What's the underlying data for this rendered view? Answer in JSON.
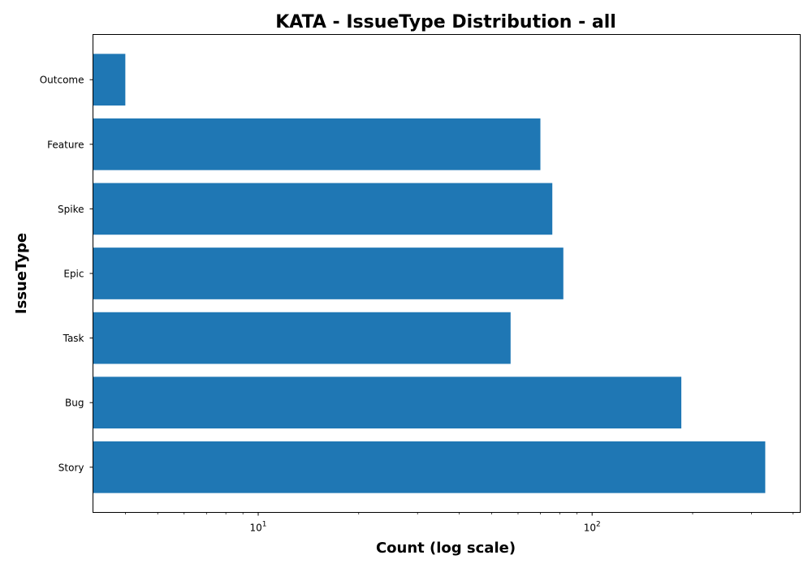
{
  "chart_data": {
    "type": "bar",
    "orientation": "horizontal",
    "title": "KATA - IssueType Distribution - all",
    "xlabel": "Count (log scale)",
    "ylabel": "IssueType",
    "x_scale": "log",
    "xlim": [
      3.2,
      420
    ],
    "x_ticks": [
      {
        "value": 10,
        "base": "10",
        "exp": "1"
      },
      {
        "value": 100,
        "base": "10",
        "exp": "2"
      }
    ],
    "categories": [
      "Story",
      "Bug",
      "Task",
      "Epic",
      "Spike",
      "Feature",
      "Outcome"
    ],
    "values": [
      330,
      185,
      57,
      82,
      76,
      70,
      4
    ],
    "bar_color": "#1f77b4",
    "grid": false,
    "legend": "none"
  }
}
